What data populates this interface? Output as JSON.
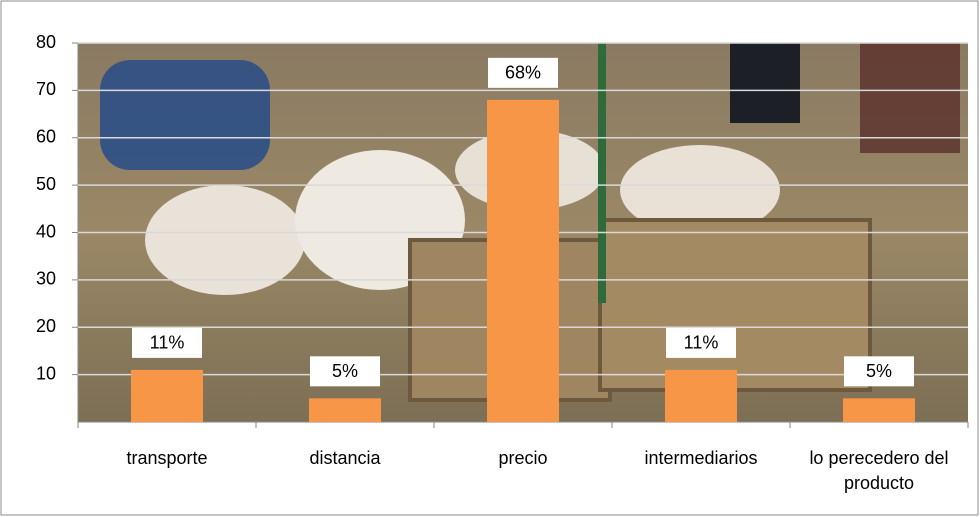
{
  "chart_data": {
    "type": "bar",
    "categories": [
      "transporte",
      "distancia",
      "precio",
      "intermediarios",
      "lo perecedero del producto"
    ],
    "values": [
      11,
      5,
      68,
      11,
      5
    ],
    "value_labels": [
      "11%",
      "5%",
      "68%",
      "11%",
      "5%"
    ],
    "color": "#f79646",
    "ylim": [
      0,
      80
    ],
    "yticks": [
      10,
      20,
      30,
      40,
      50,
      60,
      70,
      80
    ],
    "grid": true
  }
}
